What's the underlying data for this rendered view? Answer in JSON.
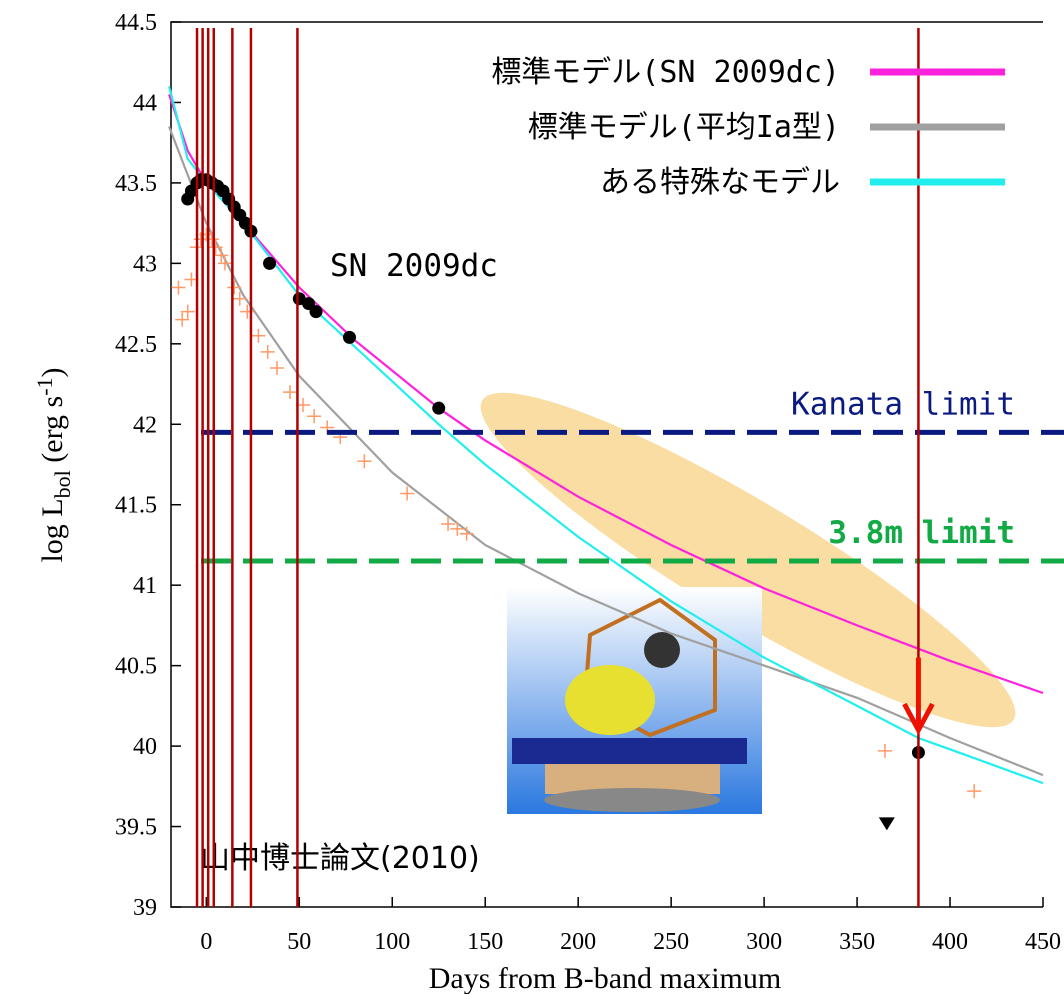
{
  "chart_data": {
    "type": "line",
    "xlabel": "Days from B-band maximum",
    "ylabel_parts": [
      "log L",
      "bol",
      " (erg s",
      "-1",
      ")"
    ],
    "xlim": [
      -19,
      450
    ],
    "ylim": [
      39,
      44.5
    ],
    "xticks": [
      0,
      50,
      100,
      150,
      200,
      250,
      300,
      350,
      400,
      450
    ],
    "yticks": [
      39,
      39.5,
      40,
      40.5,
      41,
      41.5,
      42,
      42.5,
      43,
      43.5,
      44,
      44.5
    ],
    "legend": "top-right",
    "series": [
      {
        "name": "標準モデル(SN 2009dc)",
        "color": "#ff22dd",
        "x": [
          -20,
          -10,
          0,
          20,
          50,
          80,
          125,
          150,
          200,
          250,
          300,
          350,
          400,
          450
        ],
        "values": [
          44.05,
          43.7,
          43.5,
          43.25,
          42.85,
          42.52,
          42.1,
          41.9,
          41.55,
          41.25,
          40.98,
          40.75,
          40.53,
          40.33
        ]
      },
      {
        "name": "標準モデル(平均Ia型)",
        "color": "#a0a0a0",
        "x": [
          -20,
          -10,
          0,
          20,
          50,
          100,
          150,
          200,
          250,
          300,
          350,
          400,
          450
        ],
        "values": [
          43.85,
          43.55,
          43.25,
          42.8,
          42.3,
          41.7,
          41.25,
          40.95,
          40.7,
          40.5,
          40.3,
          40.05,
          39.82
        ]
      },
      {
        "name": "ある特殊なモデル",
        "color": "#22eeee",
        "x": [
          -20,
          -10,
          0,
          20,
          50,
          80,
          125,
          150,
          200,
          250,
          300,
          350,
          383,
          400,
          450
        ],
        "values": [
          44.1,
          43.65,
          43.5,
          43.25,
          42.8,
          42.48,
          42.0,
          41.75,
          41.3,
          40.9,
          40.55,
          40.25,
          40.05,
          39.98,
          39.77
        ]
      }
    ],
    "markers": [
      {
        "marker": "plus",
        "color": "#ff9966",
        "x": [
          -15,
          -13,
          -10,
          -8,
          -5,
          -3,
          0,
          3,
          5,
          8,
          10,
          15,
          18,
          22,
          28,
          33,
          38,
          45,
          52,
          58,
          65,
          72,
          85,
          108,
          130,
          135,
          140,
          365,
          413
        ],
        "values": [
          42.85,
          42.65,
          42.7,
          42.9,
          43.1,
          43.15,
          43.18,
          43.15,
          43.1,
          43.05,
          43.0,
          42.85,
          42.78,
          42.7,
          42.55,
          42.45,
          42.35,
          42.2,
          42.12,
          42.05,
          41.98,
          41.92,
          41.77,
          41.57,
          41.38,
          41.35,
          41.32,
          39.97,
          39.72
        ]
      },
      {
        "marker": "circle",
        "color": "#000000",
        "x": [
          -10,
          -8,
          -5,
          -3,
          0,
          3,
          6,
          9,
          12,
          15,
          18,
          21,
          24,
          34,
          50,
          55,
          59,
          77,
          125,
          383
        ],
        "values": [
          43.4,
          43.45,
          43.5,
          43.52,
          43.52,
          43.5,
          43.48,
          43.45,
          43.4,
          43.35,
          43.3,
          43.25,
          43.2,
          43.0,
          42.78,
          42.75,
          42.7,
          42.54,
          42.1,
          39.96
        ]
      },
      {
        "marker": "triangle",
        "color": "#000000",
        "x": [
          366
        ],
        "values": [
          39.52
        ]
      }
    ],
    "hlines": [
      {
        "label": "Kanata limit",
        "value": 41.95,
        "color": "#0a1a80"
      },
      {
        "label": "3.8m limit",
        "value": 41.15,
        "color": "#11aa44"
      }
    ],
    "vlines": {
      "color": "#b00000",
      "x": [
        -5,
        -2,
        1,
        4,
        14,
        24,
        49,
        383
      ]
    },
    "arrow": {
      "color": "#ee1100",
      "x": 383,
      "from": 40.55,
      "to": 40.1
    },
    "annotations": [
      "SN 2009dc",
      "山中博士論文(2010)"
    ]
  }
}
